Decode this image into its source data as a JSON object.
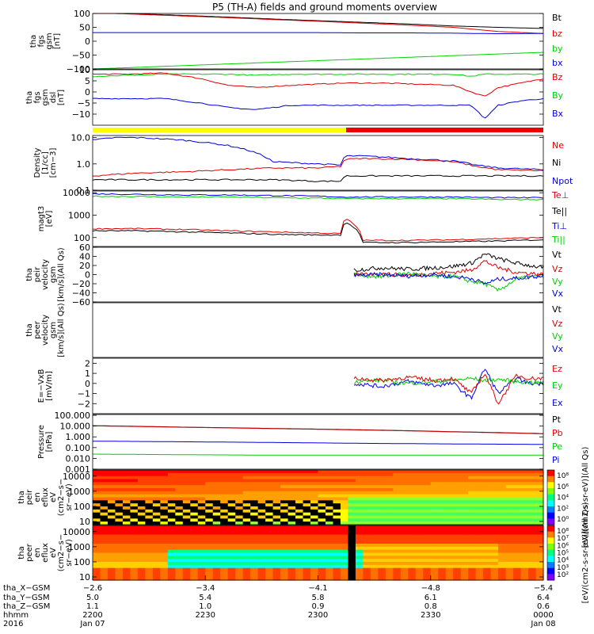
{
  "title": "P5 (TH-A) fields and ground moments overview",
  "colors": {
    "black": "#000000",
    "red": "#e00000",
    "green": "#00d000",
    "blue": "#0000e0",
    "yellow": "#ffff00",
    "bar_red": "#ee0000"
  },
  "chart_data": [
    {
      "type": "line",
      "ylabel": [
        "tha",
        "fgs",
        "gsm",
        "[nT]"
      ],
      "ylim": [
        -100,
        100
      ],
      "ticks": [
        "100",
        "50",
        "0",
        "−50",
        "−100"
      ],
      "tick_values": [
        100,
        50,
        0,
        -50,
        -100
      ],
      "legend": [
        {
          "name": "Bt",
          "color": "#000000"
        },
        {
          "name": "bz",
          "color": "#e00000"
        },
        {
          "name": "by",
          "color": "#00d000"
        },
        {
          "name": "bx",
          "color": "#0000e0"
        }
      ],
      "x": [
        0,
        0.1,
        0.2,
        0.3,
        0.4,
        0.5,
        0.6,
        0.7,
        0.8,
        0.9,
        1.0
      ],
      "series": [
        {
          "color": "#000000",
          "values": [
            105,
            99,
            93,
            87,
            80,
            74,
            68,
            62,
            55,
            50,
            46
          ]
        },
        {
          "color": "#e00000",
          "values": [
            103,
            97,
            91,
            85,
            78,
            72,
            65,
            58,
            50,
            35,
            28
          ]
        },
        {
          "color": "#0000e0",
          "values": [
            31,
            31,
            31,
            31,
            31,
            31,
            30,
            30,
            29,
            27,
            28
          ]
        },
        {
          "color": "#00d000",
          "values": [
            -100,
            -94,
            -88,
            -82,
            -76,
            -70,
            -64,
            -58,
            -52,
            -46,
            -40
          ]
        }
      ]
    },
    {
      "type": "line",
      "ylabel": [
        "tha",
        "fgs",
        "gsm",
        "dsl",
        "[nT]"
      ],
      "ylim": [
        -15,
        10
      ],
      "ticks": [
        "10",
        "5",
        "0",
        "−5",
        "−10"
      ],
      "tick_values": [
        10,
        5,
        0,
        -5,
        -10
      ],
      "legend": [
        {
          "name": "Bz",
          "color": "#e00000"
        },
        {
          "name": "By",
          "color": "#00d000"
        },
        {
          "name": "Bx",
          "color": "#0000e0"
        }
      ],
      "x": [
        0,
        0.08,
        0.16,
        0.24,
        0.3,
        0.36,
        0.44,
        0.5,
        0.56,
        0.64,
        0.72,
        0.8,
        0.84,
        0.87,
        0.9,
        0.95,
        1.0
      ],
      "series": [
        {
          "color": "#e00000",
          "values": [
            8,
            8,
            8.5,
            6,
            3,
            2,
            3,
            3.5,
            4,
            4,
            3.5,
            3,
            0,
            -2,
            2,
            4,
            6
          ]
        },
        {
          "color": "#00d000",
          "values": [
            7,
            7.5,
            8,
            8,
            8,
            7.5,
            8,
            8,
            8,
            8,
            8,
            8,
            7,
            8,
            8,
            8,
            8
          ]
        },
        {
          "color": "#0000e0",
          "values": [
            -3,
            -3,
            -3,
            -5,
            -7,
            -8,
            -6,
            -6,
            -6,
            -6,
            -6,
            -6,
            -6,
            -12,
            -6,
            -4,
            -3
          ]
        }
      ]
    },
    {
      "type": "line",
      "ylabel": [
        "Density",
        "[1/cc]",
        "[cm−3]"
      ],
      "ylim_log": [
        0.1,
        12
      ],
      "ticks": [
        "10.0",
        "1.0",
        "0.1"
      ],
      "tick_values": [
        10,
        1,
        0.1
      ],
      "legend": [
        {
          "name": "Ne",
          "color": "#e00000"
        },
        {
          "name": "Ni",
          "color": "#000000"
        },
        {
          "name": "Npot",
          "color": "#0000e0"
        }
      ],
      "x": [
        0,
        0.05,
        0.1,
        0.2,
        0.3,
        0.4,
        0.5,
        0.55,
        0.56,
        0.6,
        0.7,
        0.8,
        0.85,
        0.9,
        1.0
      ],
      "series": [
        {
          "color": "#0000e0",
          "values": [
            8,
            10,
            10,
            8,
            5,
            1.2,
            1.0,
            0.9,
            2.0,
            2.0,
            1.6,
            1.3,
            0.9,
            0.7,
            0.6
          ]
        },
        {
          "color": "#e00000",
          "values": [
            0.35,
            0.4,
            0.45,
            0.5,
            0.6,
            0.7,
            0.7,
            0.8,
            1.5,
            1.6,
            1.5,
            1.2,
            0.8,
            0.6,
            0.55
          ]
        },
        {
          "color": "#000000",
          "values": [
            0.25,
            0.25,
            0.25,
            0.25,
            0.25,
            0.25,
            0.22,
            0.22,
            0.35,
            0.35,
            0.35,
            0.35,
            0.35,
            0.35,
            0.35
          ]
        }
      ]
    },
    {
      "type": "line",
      "ylabel": [
        "magt3",
        "[eV]"
      ],
      "ylim_log": [
        40,
        12000
      ],
      "ticks": [
        "10000",
        "1000",
        "100"
      ],
      "tick_values": [
        10000,
        1000,
        100
      ],
      "legend": [
        {
          "name": "Te⊥",
          "color": "#e00000"
        },
        {
          "name": "Te||",
          "color": "#000000"
        },
        {
          "name": "Ti⊥",
          "color": "#0000e0"
        },
        {
          "name": "Ti||",
          "color": "#00d000"
        }
      ],
      "x": [
        0,
        0.1,
        0.2,
        0.3,
        0.4,
        0.5,
        0.55,
        0.56,
        0.6,
        0.7,
        0.8,
        0.9,
        1.0
      ],
      "series": [
        {
          "color": "#0000e0",
          "values": [
            9000,
            8500,
            8000,
            8000,
            7500,
            7000,
            6500,
            6500,
            6500,
            6500,
            6500,
            6000,
            6000
          ]
        },
        {
          "color": "#00d000",
          "values": [
            7000,
            6800,
            6500,
            6500,
            6000,
            5800,
            5500,
            5500,
            5500,
            5500,
            5500,
            5000,
            5000
          ]
        },
        {
          "color": "#e00000",
          "values": [
            250,
            250,
            230,
            200,
            180,
            160,
            150,
            700,
            75,
            75,
            80,
            90,
            100
          ]
        },
        {
          "color": "#000000",
          "values": [
            200,
            200,
            180,
            160,
            140,
            130,
            130,
            500,
            60,
            60,
            65,
            70,
            80
          ]
        }
      ]
    },
    {
      "type": "line",
      "ylabel": [
        "tha",
        "peir",
        "velocity",
        "gsm",
        "[km/s](All Qs)"
      ],
      "ylim": [
        -60,
        60
      ],
      "ticks": [
        "60",
        "40",
        "20",
        "0",
        "−20",
        "−40",
        "−60"
      ],
      "tick_values": [
        60,
        40,
        20,
        0,
        -20,
        -40,
        -60
      ],
      "legend": [
        {
          "name": "Vt",
          "color": "#000000"
        },
        {
          "name": "Vz",
          "color": "#e00000"
        },
        {
          "name": "Vy",
          "color": "#00d000"
        },
        {
          "name": "Vx",
          "color": "#0000e0"
        }
      ],
      "x": [
        0.58,
        0.64,
        0.7,
        0.76,
        0.8,
        0.84,
        0.87,
        0.9,
        0.94,
        0.97,
        1.0
      ],
      "series": [
        {
          "color": "#000000",
          "values": [
            10,
            15,
            12,
            15,
            18,
            25,
            45,
            35,
            25,
            20,
            15
          ]
        },
        {
          "color": "#e00000",
          "values": [
            0,
            2,
            -2,
            3,
            5,
            10,
            30,
            15,
            5,
            3,
            0
          ]
        },
        {
          "color": "#00d000",
          "values": [
            0,
            -5,
            3,
            -5,
            -3,
            -15,
            -20,
            -35,
            -10,
            -5,
            -3
          ]
        },
        {
          "color": "#0000e0",
          "values": [
            -2,
            0,
            -3,
            0,
            -5,
            -8,
            -20,
            -10,
            -8,
            -5,
            -3
          ]
        }
      ]
    },
    {
      "type": "line",
      "ylabel": [
        "tha",
        "peer",
        "velocity",
        "gsm",
        "[km/s](All Qs)"
      ],
      "ylim": [
        -60,
        60
      ],
      "ticks": [],
      "tick_values": [],
      "legend": [
        {
          "name": "Vt",
          "color": "#000000"
        },
        {
          "name": "Vz",
          "color": "#e00000"
        },
        {
          "name": "Vy",
          "color": "#00d000"
        },
        {
          "name": "Vx",
          "color": "#0000e0"
        }
      ],
      "x": [],
      "series": []
    },
    {
      "type": "line",
      "ylabel": [
        "E=−VxB",
        "[mV/m]"
      ],
      "ylim": [
        -3,
        2.5
      ],
      "ticks": [
        "2",
        "1",
        "0",
        "−1",
        "−2"
      ],
      "tick_values": [
        2,
        1,
        0,
        -1,
        -2
      ],
      "legend": [
        {
          "name": "Ez",
          "color": "#e00000"
        },
        {
          "name": "Ey",
          "color": "#00d000"
        },
        {
          "name": "Ex",
          "color": "#0000e0"
        }
      ],
      "x": [
        0.58,
        0.64,
        0.7,
        0.76,
        0.8,
        0.84,
        0.87,
        0.9,
        0.94,
        0.97,
        1.0
      ],
      "series": [
        {
          "color": "#0000e0",
          "values": [
            0,
            -0.3,
            0.2,
            -0.2,
            0,
            -1.5,
            1.5,
            -1.0,
            0.5,
            0,
            0
          ]
        },
        {
          "color": "#00d000",
          "values": [
            0.2,
            0.3,
            0,
            0.2,
            0.3,
            0.5,
            0.3,
            0.4,
            0.2,
            0.1,
            0.1
          ]
        },
        {
          "color": "#e00000",
          "values": [
            0.5,
            0.3,
            0.6,
            0.3,
            0.5,
            -1.0,
            1.0,
            -2.0,
            0.8,
            0.5,
            0.5
          ]
        }
      ]
    },
    {
      "type": "line",
      "ylabel": [
        "Pressure",
        "[nPa]"
      ],
      "ylim_log": [
        0.001,
        120
      ],
      "ticks": [
        "100.000",
        "10.000",
        "1.000",
        "0.100",
        "0.010",
        "0.001"
      ],
      "tick_values": [
        100,
        10,
        1,
        0.1,
        0.01,
        0.001
      ],
      "legend": [
        {
          "name": "Pt",
          "color": "#000000"
        },
        {
          "name": "Pb",
          "color": "#e00000"
        },
        {
          "name": "Pe",
          "color": "#00d000"
        },
        {
          "name": "Pi",
          "color": "#0000e0"
        }
      ],
      "x": [
        0,
        0.2,
        0.4,
        0.6,
        0.8,
        1.0
      ],
      "series": [
        {
          "color": "#000000",
          "values": [
            11,
            8,
            6,
            4.5,
            3,
            2
          ]
        },
        {
          "color": "#e00000",
          "values": [
            10.5,
            7.8,
            5.8,
            4.3,
            2.9,
            1.9
          ]
        },
        {
          "color": "#0000e0",
          "values": [
            0.4,
            0.35,
            0.3,
            0.25,
            0.22,
            0.2
          ]
        },
        {
          "color": "#00d000",
          "values": [
            0.025,
            0.022,
            0.02,
            0.02,
            0.02,
            0.02
          ]
        }
      ]
    },
    {
      "type": "heatmap",
      "ylabel": [
        "tha",
        "peir",
        "en",
        "eflux",
        "eV",
        "(cm2−s−",
        "sr−eV)"
      ],
      "ticks": [
        "10000",
        "1000",
        "100",
        "10"
      ],
      "tick_values": [
        10000,
        1000,
        100,
        10
      ],
      "colorbar_ticks": [
        "10⁸",
        "10⁶",
        "10⁴",
        "10²",
        "10⁰"
      ],
      "colorbar_label": "[eV/(cm2-s-sr-eV)](All Qs)"
    },
    {
      "type": "heatmap",
      "ylabel": [
        "tha",
        "peer",
        "en",
        "eflux",
        "eV",
        "(cm2−s−",
        "sr−eV)"
      ],
      "ticks": [
        "10000",
        "1000",
        "100",
        "10"
      ],
      "tick_values": [
        10000,
        1000,
        100,
        10
      ],
      "colorbar_ticks": [
        "10⁸",
        "10⁷",
        "10⁶",
        "10⁵",
        "10⁴",
        "10³",
        "10²"
      ],
      "colorbar_label": "[eV/(cm2-s-sr-eV)](All Qs)"
    }
  ],
  "xaxis": {
    "rows": [
      {
        "label": "tha_X−GSM",
        "values": [
          "−2.6",
          "−3.4",
          "−4.1",
          "−4.8",
          "−5.4"
        ]
      },
      {
        "label": "tha_Y−GSM",
        "values": [
          "5.0",
          "5.4",
          "5.8",
          "6.1",
          "6.4"
        ]
      },
      {
        "label": "tha_Z−GSM",
        "values": [
          "1.1",
          "1.0",
          "0.9",
          "0.8",
          "0.6"
        ]
      },
      {
        "label": "hhmm",
        "values": [
          "2200",
          "2230",
          "2300",
          "2330",
          "0000"
        ]
      },
      {
        "label": "2016",
        "values": [
          "Jan 07",
          "",
          "",
          "",
          "Jan 08"
        ]
      }
    ]
  }
}
